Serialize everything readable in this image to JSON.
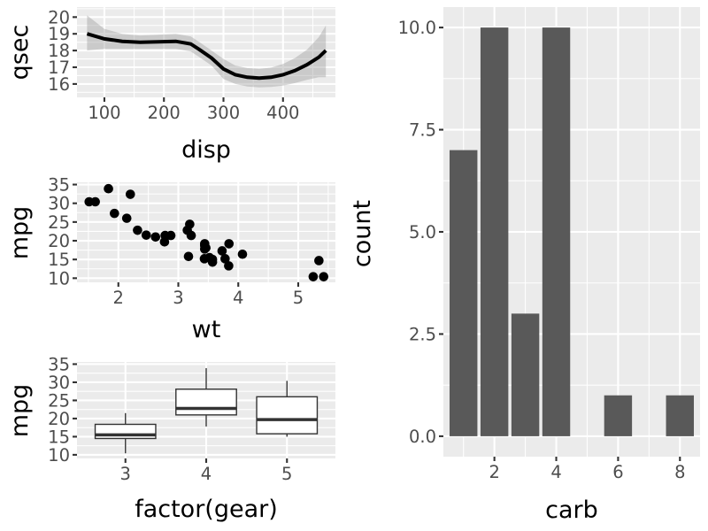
{
  "chart_data": [
    {
      "type": "line",
      "subtype": "loess smooth with confidence band",
      "xlabel": "disp",
      "ylabel": "qsec",
      "xlim": [
        54,
        488
      ],
      "ylim": [
        15.2,
        20.6
      ],
      "xticks": [
        100,
        200,
        300,
        400
      ],
      "yticks": [
        16,
        17,
        18,
        19,
        20
      ],
      "x": [
        71,
        100,
        130,
        160,
        190,
        220,
        245,
        260,
        280,
        300,
        320,
        340,
        360,
        380,
        400,
        420,
        440,
        460,
        472
      ],
      "y": [
        19.0,
        18.7,
        18.55,
        18.5,
        18.52,
        18.55,
        18.4,
        18.05,
        17.55,
        16.9,
        16.55,
        16.4,
        16.35,
        16.4,
        16.55,
        16.8,
        17.15,
        17.6,
        18.0
      ],
      "ci_lower": [
        18.0,
        18.1,
        18.1,
        18.1,
        18.1,
        18.1,
        17.95,
        17.6,
        17.1,
        16.3,
        16.0,
        15.85,
        15.8,
        15.82,
        15.9,
        16.05,
        16.25,
        16.4,
        16.4
      ],
      "ci_upper": [
        20.1,
        19.3,
        19.0,
        18.9,
        18.95,
        19.0,
        18.85,
        18.5,
        18.0,
        17.5,
        17.1,
        16.95,
        16.9,
        16.98,
        17.2,
        17.55,
        18.05,
        18.8,
        19.5
      ],
      "line_color": "#000000",
      "band_color": "#999999"
    },
    {
      "type": "scatter",
      "xlabel": "wt",
      "ylabel": "mpg",
      "xlim": [
        1.31,
        5.62
      ],
      "ylim": [
        8.9,
        35.6
      ],
      "xticks": [
        2,
        3,
        4,
        5
      ],
      "yticks": [
        10,
        15,
        20,
        25,
        30,
        35
      ],
      "x": [
        2.62,
        2.875,
        2.32,
        3.215,
        3.44,
        3.46,
        3.57,
        3.19,
        3.15,
        3.44,
        3.44,
        4.07,
        3.73,
        3.78,
        5.25,
        5.424,
        5.345,
        2.2,
        1.615,
        1.835,
        2.465,
        3.52,
        3.435,
        3.84,
        3.845,
        1.935,
        2.14,
        1.513,
        3.17,
        2.77,
        3.57,
        2.78
      ],
      "y": [
        21.0,
        21.4,
        22.8,
        21.4,
        18.7,
        18.1,
        14.3,
        24.4,
        22.8,
        19.2,
        17.8,
        16.4,
        17.3,
        15.2,
        10.4,
        10.4,
        14.7,
        32.4,
        30.4,
        33.9,
        21.5,
        15.5,
        15.2,
        13.3,
        19.2,
        27.3,
        26.0,
        30.4,
        15.8,
        19.7,
        15.0,
        21.4
      ],
      "point_color": "#000000"
    },
    {
      "type": "box",
      "xlabel": "factor(gear)",
      "ylabel": "mpg",
      "ylim": [
        9.0,
        35.6
      ],
      "yticks": [
        10,
        15,
        20,
        25,
        30,
        35
      ],
      "categories": [
        "3",
        "4",
        "5"
      ],
      "boxes": [
        {
          "lower_whisker": 10.4,
          "q1": 14.5,
          "median": 15.5,
          "q3": 18.4,
          "upper_whisker": 21.5
        },
        {
          "lower_whisker": 17.8,
          "q1": 21.0,
          "median": 22.8,
          "q3": 28.1,
          "upper_whisker": 33.9
        },
        {
          "lower_whisker": 15.0,
          "q1": 15.8,
          "median": 19.7,
          "q3": 26.0,
          "upper_whisker": 30.4
        }
      ]
    },
    {
      "type": "bar",
      "xlabel": "carb",
      "ylabel": "count",
      "x": [
        1,
        2,
        3,
        4,
        6,
        8
      ],
      "values": [
        7,
        10,
        3,
        10,
        1,
        1
      ],
      "xlim": [
        0.35,
        8.65
      ],
      "ylim": [
        -0.5,
        10.5
      ],
      "xticks": [
        2,
        4,
        6,
        8
      ],
      "yticks": [
        0,
        2.5,
        5,
        7.5,
        10
      ],
      "ytick_labels": [
        "0.0",
        "2.5",
        "5.0",
        "7.5",
        "10.0"
      ],
      "bar_color": "#595959"
    }
  ]
}
